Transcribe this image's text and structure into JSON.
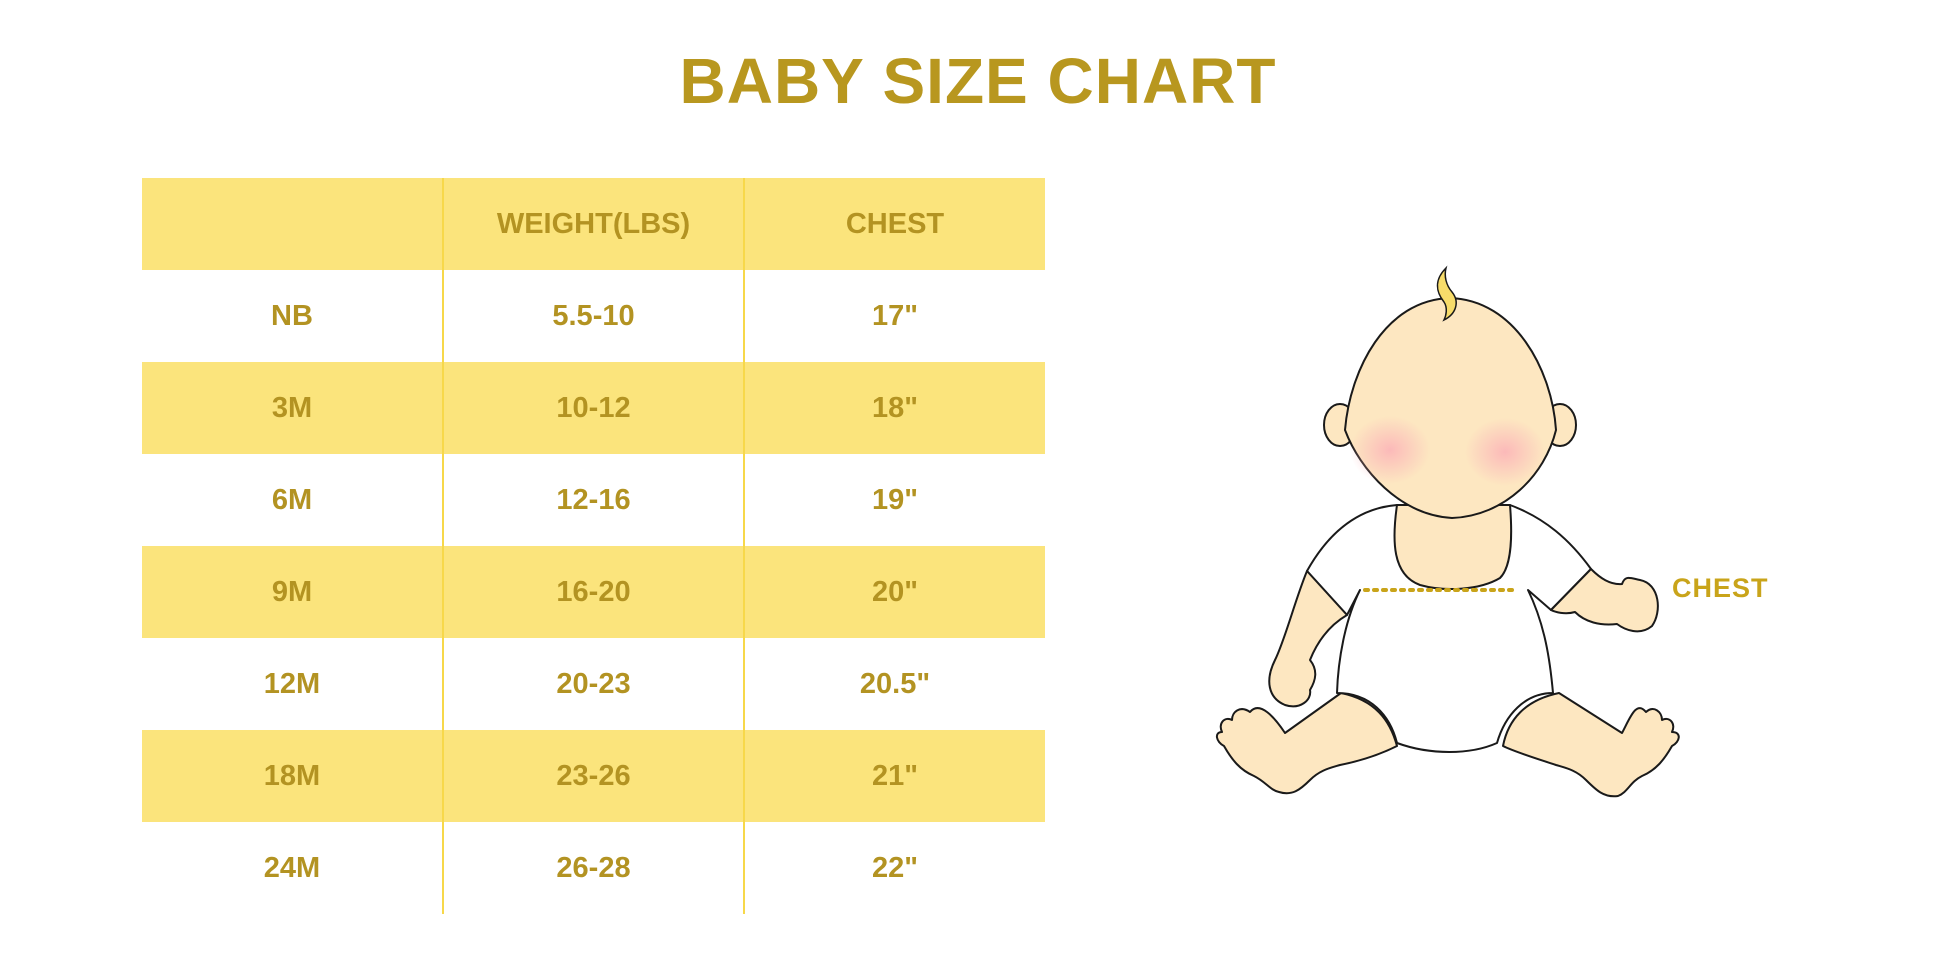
{
  "title": "BABY SIZE CHART",
  "table": {
    "headers": [
      "",
      "WEIGHT(LBS)",
      "CHEST"
    ],
    "rows": [
      [
        "NB",
        "5.5-10",
        "17\""
      ],
      [
        "3M",
        "10-12",
        "18\""
      ],
      [
        "6M",
        "12-16",
        "19\""
      ],
      [
        "9M",
        "16-20",
        "20\""
      ],
      [
        "12M",
        "20-23",
        "20.5\""
      ],
      [
        "18M",
        "23-26",
        "21\""
      ],
      [
        "24M",
        "26-28",
        "22\""
      ]
    ]
  },
  "illustration": {
    "label": "CHEST"
  },
  "colors": {
    "title": "#b8971f",
    "band": "#fbe47c",
    "text": "#b39322",
    "divider": "#f7d84a",
    "skin": "#fde7c1"
  }
}
